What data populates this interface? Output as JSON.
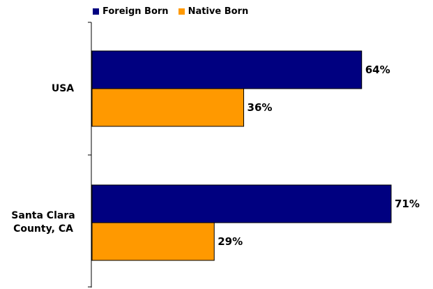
{
  "chart_data": {
    "type": "bar",
    "orientation": "horizontal",
    "categories": [
      {
        "lines": [
          "USA"
        ]
      },
      {
        "lines": [
          "Santa Clara",
          "County, CA"
        ]
      }
    ],
    "series": [
      {
        "name": "Foreign Born",
        "color": "#000080",
        "values": [
          64,
          71
        ],
        "labels": [
          "64%",
          "71%"
        ]
      },
      {
        "name": "Native Born",
        "color": "#FF9900",
        "values": [
          36,
          29
        ],
        "labels": [
          "36%",
          "29%"
        ]
      }
    ],
    "xlim": [
      0,
      80
    ],
    "grid": false,
    "legend": "top",
    "title": "",
    "xlabel": "",
    "ylabel": ""
  }
}
